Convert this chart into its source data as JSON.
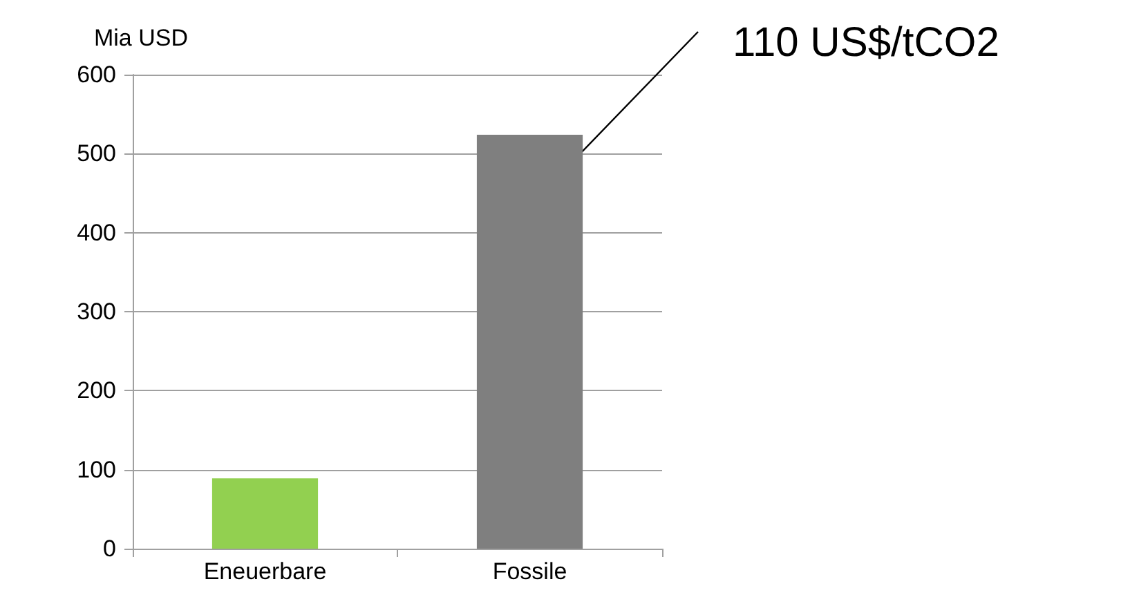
{
  "chart_data": {
    "type": "bar",
    "ylabel": "Mia USD",
    "categories": [
      "Eneuerbare",
      "Fossile"
    ],
    "values": [
      89,
      524
    ],
    "colors": [
      "#92d050",
      "#7f7f7f"
    ],
    "ylim": [
      0,
      600
    ],
    "yticks": [
      0,
      100,
      200,
      300,
      400,
      500,
      600
    ],
    "grid": "y",
    "annotations": [
      "110 US$/tCO2"
    ]
  }
}
